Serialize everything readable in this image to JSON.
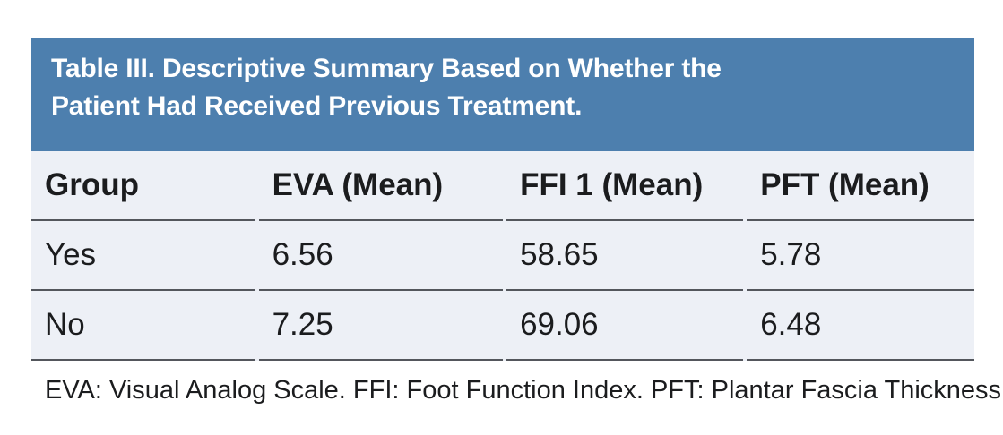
{
  "figure": {
    "title_line1": "Table III. Descriptive Summary Based on Whether the",
    "title_line2": "Patient Had Received Previous Treatment.",
    "footnote": "EVA: Visual Analog Scale. FFI: Foot Function Index. PFT: Plantar Fascia Thickness."
  },
  "table": {
    "columns": [
      "Group",
      "EVA (Mean)",
      "FFI 1 (Mean)",
      "PFT (Mean)"
    ],
    "rows": [
      [
        "Yes",
        "6.56",
        "58.65",
        "5.78"
      ],
      [
        "No",
        "7.25",
        "69.06",
        "6.48"
      ]
    ]
  },
  "colors": {
    "header_bg": "#4d7fae",
    "row_bg": "#edf0f6",
    "rule": "#53565c",
    "title_text": "#ffffff",
    "body_text": "#1b1c1e"
  },
  "chart_data": {
    "type": "table",
    "title": "Table III. Descriptive Summary Based on Whether the Patient Had Received Previous Treatment.",
    "columns": [
      "Group",
      "EVA (Mean)",
      "FFI 1 (Mean)",
      "PFT (Mean)"
    ],
    "rows": [
      {
        "Group": "Yes",
        "EVA (Mean)": 6.56,
        "FFI 1 (Mean)": 58.65,
        "PFT (Mean)": 5.78
      },
      {
        "Group": "No",
        "EVA (Mean)": 7.25,
        "FFI 1 (Mean)": 69.06,
        "PFT (Mean)": 6.48
      }
    ],
    "footnote": "EVA: Visual Analog Scale. FFI: Foot Function Index. PFT: Plantar Fascia Thickness."
  }
}
